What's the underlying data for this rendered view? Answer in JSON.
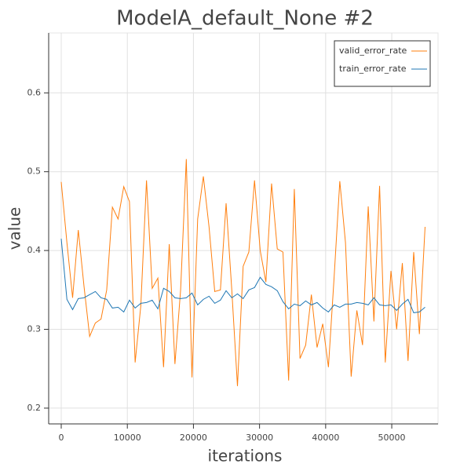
{
  "chart_data": {
    "type": "line",
    "title": "ModelA_default_None #2",
    "xlabel": "iterations",
    "ylabel": "value",
    "x": [
      0,
      860,
      1720,
      2580,
      3440,
      4300,
      5160,
      6020,
      6880,
      7740,
      8600,
      9460,
      10320,
      11180,
      12040,
      12900,
      13760,
      14620,
      15480,
      16340,
      17200,
      18060,
      18920,
      19780,
      20640,
      21500,
      22360,
      23220,
      24080,
      24940,
      25800,
      26660,
      27520,
      28380,
      29240,
      30100,
      30960,
      31820,
      32680,
      33540,
      34400,
      35260,
      36120,
      36980,
      37840,
      38700,
      39560,
      40420,
      41280,
      42140,
      43000,
      43860,
      44720,
      45580,
      46440,
      47300,
      48160,
      49020,
      49880,
      50740,
      51600,
      52460,
      53320,
      54180,
      55040
    ],
    "series": [
      {
        "name": "valid_error_rate",
        "color": "#ff7f0e",
        "values": [
          0.487,
          0.41,
          0.34,
          0.426,
          0.355,
          0.291,
          0.308,
          0.313,
          0.35,
          0.455,
          0.44,
          0.481,
          0.462,
          0.258,
          0.33,
          0.489,
          0.352,
          0.365,
          0.252,
          0.408,
          0.256,
          0.35,
          0.516,
          0.239,
          0.44,
          0.494,
          0.43,
          0.348,
          0.35,
          0.46,
          0.35,
          0.228,
          0.38,
          0.398,
          0.489,
          0.4,
          0.36,
          0.485,
          0.402,
          0.398,
          0.235,
          0.478,
          0.263,
          0.28,
          0.344,
          0.277,
          0.307,
          0.252,
          0.366,
          0.488,
          0.41,
          0.24,
          0.324,
          0.28,
          0.456,
          0.31,
          0.482,
          0.258,
          0.374,
          0.3,
          0.384,
          0.26,
          0.398,
          0.294,
          0.43
        ]
      },
      {
        "name": "train_error_rate",
        "color": "#1f77b4",
        "values": [
          0.415,
          0.338,
          0.325,
          0.339,
          0.34,
          0.344,
          0.348,
          0.34,
          0.338,
          0.327,
          0.328,
          0.322,
          0.337,
          0.327,
          0.333,
          0.334,
          0.337,
          0.326,
          0.352,
          0.348,
          0.34,
          0.339,
          0.34,
          0.346,
          0.331,
          0.338,
          0.342,
          0.333,
          0.337,
          0.349,
          0.34,
          0.345,
          0.339,
          0.35,
          0.353,
          0.366,
          0.357,
          0.354,
          0.349,
          0.335,
          0.326,
          0.332,
          0.33,
          0.336,
          0.331,
          0.334,
          0.327,
          0.322,
          0.331,
          0.328,
          0.332,
          0.332,
          0.334,
          0.333,
          0.331,
          0.34,
          0.331,
          0.33,
          0.331,
          0.324,
          0.332,
          0.338,
          0.321,
          0.322,
          0.328
        ]
      }
    ],
    "xlim": [
      -1900,
      57000
    ],
    "ylim": [
      0.18,
      0.676
    ],
    "xticks": [
      0,
      10000,
      20000,
      30000,
      40000,
      50000
    ],
    "yticks": [
      0.2,
      0.3,
      0.4,
      0.5,
      0.6
    ],
    "grid": true,
    "legend": "top-right"
  }
}
